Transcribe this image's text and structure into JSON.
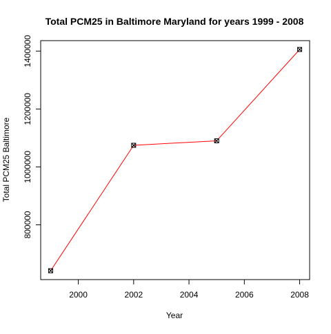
{
  "chart_data": {
    "type": "line",
    "title": "Total PCM25 in Baltimore Maryland for years 1999 - 2008",
    "xlabel": "Year",
    "ylabel": "Total PCM25 Baltimore",
    "x": [
      1999,
      2002,
      2005,
      2008
    ],
    "series": [
      {
        "values": [
          641200,
          1074600,
          1090100,
          1405600
        ],
        "color": "#ff0000"
      }
    ],
    "xlim": [
      1999,
      2008
    ],
    "ylim": [
      641200,
      1405600
    ],
    "xticks": [
      2000,
      2002,
      2004,
      2006,
      2008
    ],
    "xtick_labels": [
      "2000",
      "2002",
      "2004",
      "2006",
      "2008"
    ],
    "yticks": [
      800000,
      1000000,
      1200000,
      1400000
    ],
    "ytick_labels": [
      "800000",
      "1000000",
      "1200000",
      "1400000"
    ],
    "grid": false,
    "marker": "square-with-x",
    "colors": {
      "line": "#ff0000",
      "marker": "#000000",
      "axis": "#000000"
    }
  }
}
